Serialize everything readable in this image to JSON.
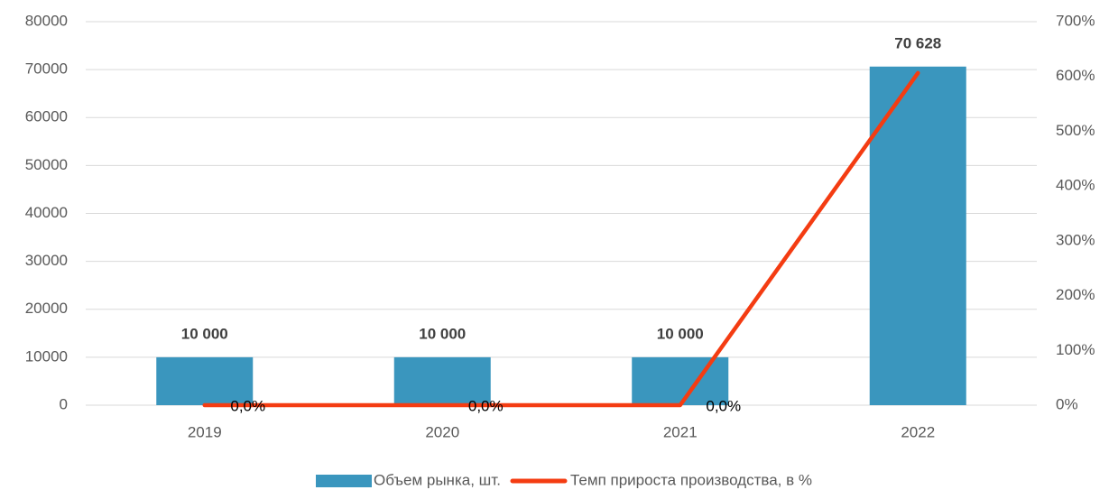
{
  "chart_data": {
    "type": "bar_line",
    "categories": [
      "2019",
      "2020",
      "2021",
      "2022"
    ],
    "series": [
      {
        "name": "Объем рынка, шт.",
        "type": "bar",
        "color": "#3a96be",
        "values": [
          10000,
          10000,
          10000,
          70628
        ],
        "value_labels": [
          "10 000",
          "10 000",
          "10 000",
          "70 628"
        ]
      },
      {
        "name": "Темп прироста производства, в %",
        "type": "line",
        "axis": "y2",
        "color": "#f43c12",
        "values": [
          0,
          0,
          0,
          606.28
        ],
        "value_labels": [
          "0,0%",
          "0,0%",
          "0,0%",
          null
        ]
      }
    ],
    "ylim": [
      0,
      80000
    ],
    "yticks": [
      0,
      10000,
      20000,
      30000,
      40000,
      50000,
      60000,
      70000,
      80000
    ],
    "y2lim": [
      0,
      700
    ],
    "y2ticks": [
      {
        "value": 0,
        "label": "0%"
      },
      {
        "value": 100,
        "label": "100%"
      },
      {
        "value": 200,
        "label": "200%"
      },
      {
        "value": 300,
        "label": "300%"
      },
      {
        "value": 400,
        "label": "400%"
      },
      {
        "value": 500,
        "label": "500%"
      },
      {
        "value": 600,
        "label": "600%"
      },
      {
        "value": 700,
        "label": "700%"
      }
    ],
    "grid": true,
    "legend": "bottom"
  }
}
